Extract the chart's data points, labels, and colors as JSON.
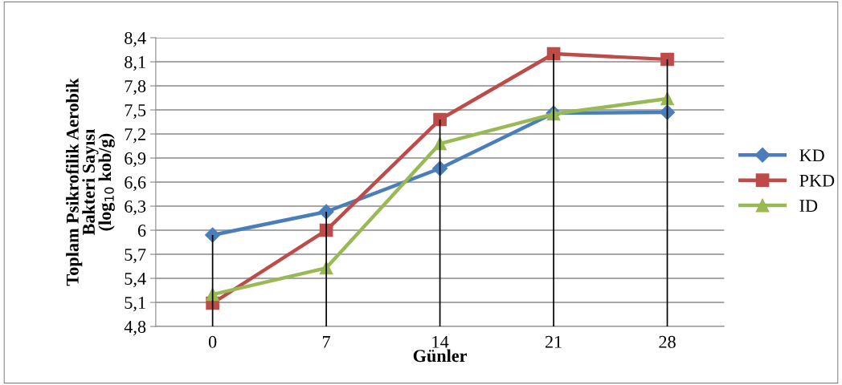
{
  "chart_data": {
    "type": "line",
    "xlabel": "Günler",
    "ylabel": "Toplam Psikrofilik Aerobik\nBakteri Sayısı\n(log$_{10}$ kob/g)",
    "categories": [
      "0",
      "7",
      "14",
      "21",
      "28"
    ],
    "series": [
      {
        "name": "KD",
        "color": "#4a7ebb",
        "marker": "diamond",
        "values": [
          5.94,
          6.23,
          6.77,
          7.46,
          7.47
        ]
      },
      {
        "name": "PKD",
        "color": "#be4b48",
        "marker": "square",
        "values": [
          5.09,
          6.0,
          7.38,
          8.2,
          8.13
        ]
      },
      {
        "name": "ID",
        "color": "#98b954",
        "marker": "triangle",
        "values": [
          5.2,
          5.53,
          7.08,
          7.45,
          7.64
        ]
      },
      {
        "type": "bar",
        "color": "#000000",
        "values": [
          5.94,
          6.23,
          7.38,
          8.2,
          8.13
        ]
      }
    ],
    "ylim": [
      4.8,
      8.4
    ],
    "yticks": [
      {
        "value": 4.8,
        "label": "4,8"
      },
      {
        "value": 5.1,
        "label": "5,1"
      },
      {
        "value": 5.4,
        "label": "5,4"
      },
      {
        "value": 5.7,
        "label": "5,7"
      },
      6,
      {
        "value": 6.3,
        "label": "6,3"
      },
      {
        "value": 6.6,
        "label": "6,6"
      },
      {
        "value": 6.9,
        "label": "6,9"
      },
      {
        "value": 7.2,
        "label": "7,2"
      },
      {
        "value": 7.5,
        "label": "7,5"
      },
      {
        "value": 7.8,
        "label": "7,8"
      },
      {
        "value": 8.1,
        "label": "8,1"
      },
      {
        "value": 8.4,
        "label": "8,4"
      }
    ],
    "grid": "y",
    "legend": "right",
    "line_style": "solid"
  }
}
